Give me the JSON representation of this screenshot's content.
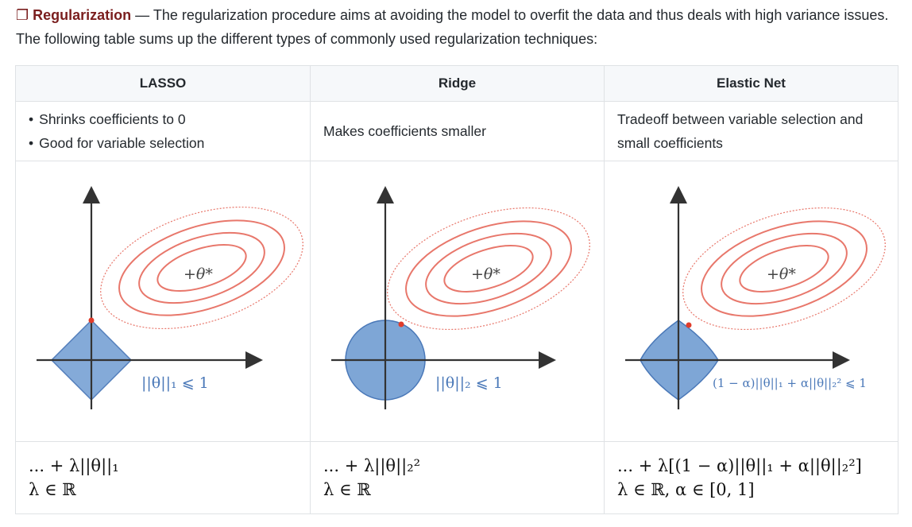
{
  "intro": {
    "icon": "❐",
    "keyword": "Regularization",
    "dash": " — ",
    "text": "The regularization procedure aims at avoiding the model to overfit the data and thus deals with high variance issues. The following table sums up the different types of commonly used regularization techniques:"
  },
  "columns": [
    {
      "header": "LASSO",
      "bullets": [
        "Shrinks coefficients to 0",
        "Good for variable selection"
      ],
      "constraint_label": "||θ||₁ ⩽ 1",
      "theta_label": "+θ*",
      "formula_line1": "... + λ||θ||₁",
      "formula_line2": "λ ∈ ℝ"
    },
    {
      "header": "Ridge",
      "description": "Makes coefficients smaller",
      "constraint_label": "||θ||₂ ⩽ 1",
      "theta_label": "+θ*",
      "formula_line1": "... + λ||θ||₂²",
      "formula_line2": "λ ∈ ℝ"
    },
    {
      "header": "Elastic Net",
      "description": "Tradeoff between variable selection and small coefficients",
      "constraint_label": "(1 − α)||θ||₁ + α||θ||₂² ⩽ 1",
      "theta_label": "+θ*",
      "formula_line1": "... + λ[(1 − α)||θ||₁ + α||θ||₂²]",
      "formula_line2": "λ ∈ ℝ, α ∈ [0, 1]"
    }
  ],
  "colors": {
    "region_fill": "#7ea6d6",
    "region_stroke": "#4a78b8",
    "contour": "#e8776b",
    "label_blue": "#4a78b8",
    "keyword": "#7a1e1e"
  }
}
